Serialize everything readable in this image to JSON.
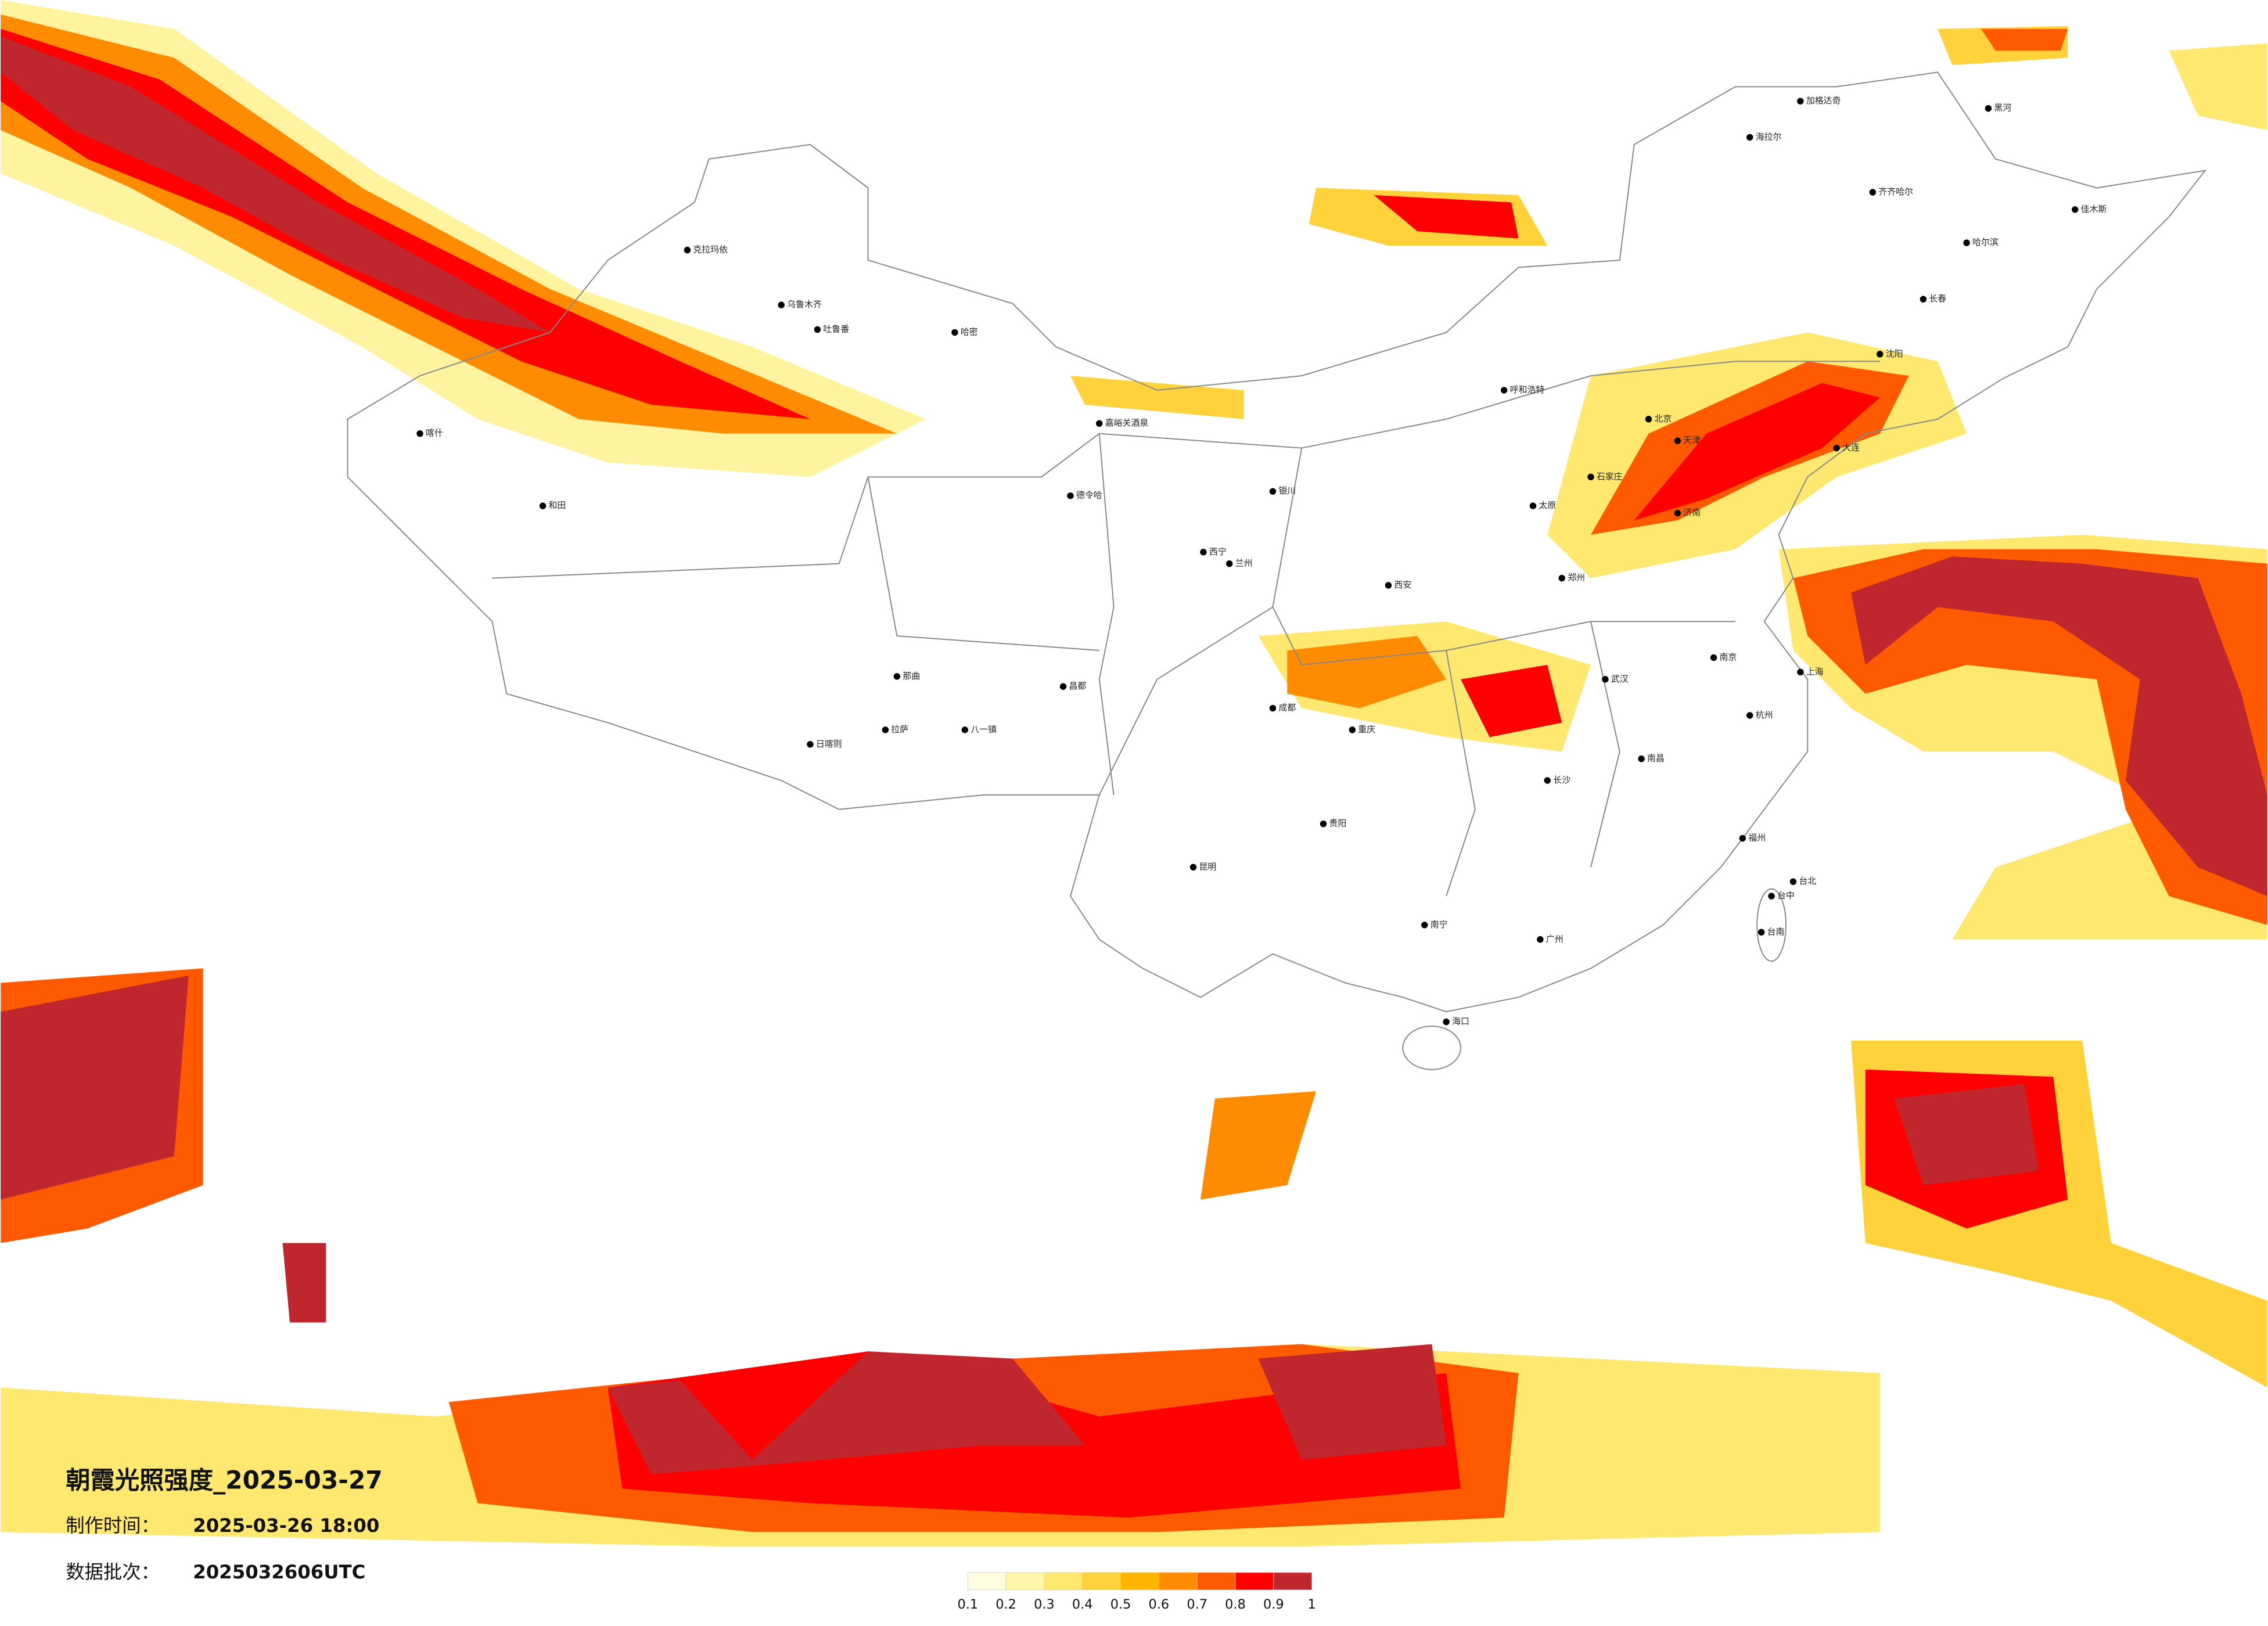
{
  "title": "朝霞光照强度_2025-03-27",
  "made_label": "制作时间：",
  "made_time": "2025-03-26 18:00",
  "batch_label": "数据批次：",
  "batch": "2025032606UTC",
  "legend": {
    "ticks": [
      0.1,
      0.2,
      0.3,
      0.4,
      0.5,
      0.6,
      0.7,
      0.8,
      0.9,
      1
    ],
    "colors": [
      "#fffde0",
      "#fff7a8",
      "#ffe870",
      "#ffd23c",
      "#ffb400",
      "#ff8c00",
      "#ff5a00",
      "#ff0000",
      "#c0262d"
    ]
  },
  "cities": [
    "乌鲁木齐",
    "克拉玛依",
    "哈密",
    "吐鲁番",
    "和田",
    "喀什",
    "拉萨",
    "日喀则",
    "那曲",
    "昌都",
    "八一镇",
    "嘉峪关酒泉",
    "德令哈",
    "西宁",
    "兰州",
    "银川",
    "呼和浩特",
    "北京",
    "天津",
    "石家庄",
    "太原",
    "济南",
    "郑州",
    "西安",
    "成都",
    "重庆",
    "贵阳",
    "昆明",
    "南宁",
    "广州",
    "长沙",
    "武汉",
    "南昌",
    "杭州",
    "上海",
    "南京",
    "福州",
    "海口",
    "台北",
    "台中",
    "台南",
    "哈尔滨",
    "长春",
    "沈阳",
    "大连",
    "齐齐哈尔",
    "海拉尔",
    "加格达奇",
    "黑河",
    "佳木斯"
  ]
}
